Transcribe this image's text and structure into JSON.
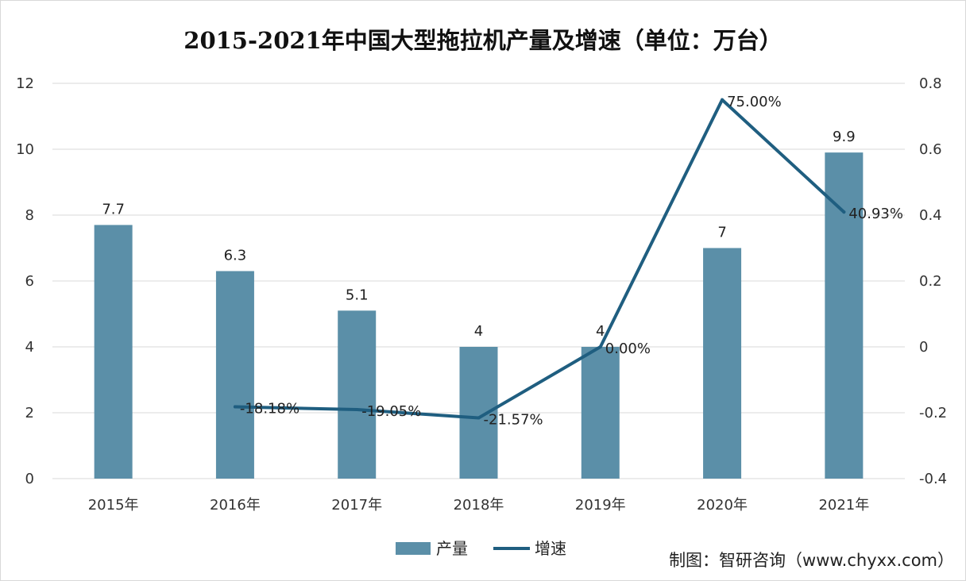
{
  "title": "2015-2021年中国大型拖拉机产量及增速（单位：万台）",
  "source": "制图：智研咨询（www.chyxx.com）",
  "colors": {
    "bar": "#5b8fa8",
    "line": "#1f5e80",
    "grid": "#d9d9d9",
    "text": "#222222"
  },
  "chart_data": {
    "type": "bar+line",
    "categories": [
      "2015年",
      "2016年",
      "2017年",
      "2018年",
      "2019年",
      "2020年",
      "2021年"
    ],
    "series": [
      {
        "name": "产量",
        "type": "bar",
        "axis": "left",
        "values": [
          7.7,
          6.3,
          5.1,
          4,
          4,
          7,
          9.9
        ],
        "labels": [
          "7.7",
          "6.3",
          "5.1",
          "4",
          "4",
          "7",
          "9.9"
        ]
      },
      {
        "name": "增速",
        "type": "line",
        "axis": "right",
        "values": [
          null,
          -0.1818,
          -0.1905,
          -0.2157,
          0.0,
          0.75,
          0.4093
        ],
        "labels": [
          "",
          "-18.18%",
          "-19.05%",
          "-21.57%",
          "0.00%",
          "75.00%",
          "40.93%"
        ]
      }
    ],
    "y_left": {
      "min": 0,
      "max": 12,
      "ticks": [
        "0",
        "2",
        "4",
        "6",
        "8",
        "10",
        "12"
      ]
    },
    "y_right": {
      "min": -0.4,
      "max": 0.8,
      "ticks": [
        "-0.4",
        "-0.2",
        "0",
        "0.2",
        "0.4",
        "0.6",
        "0.8"
      ]
    },
    "grid": "horizontal",
    "legend": "bottom"
  }
}
